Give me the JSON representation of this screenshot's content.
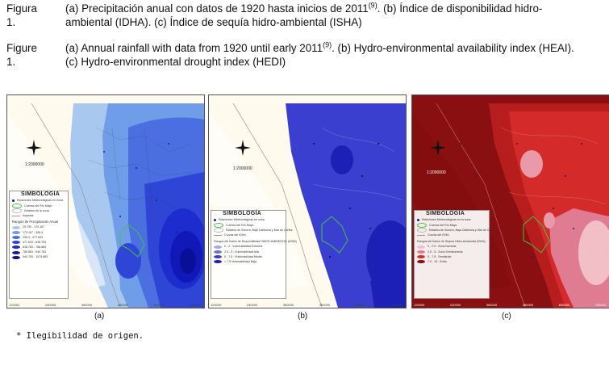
{
  "captions": {
    "spanish": {
      "label": "Figura 1.",
      "text_line1_pre": "(a) Precipitación anual con datos de 1920 hasta inicios de 2011",
      "sup1": "(9)",
      "text_line1_post": ". (b) Índice de disponibilidad hidro-",
      "text_line2": "ambiental (IDHA). (c) Índice de sequía hidro-ambiental (ISHA)"
    },
    "english": {
      "label": "Figure 1.",
      "text_line1_pre": "(a) Annual rainfall with data from 1920 until early 2011",
      "sup1": "(9)",
      "text_line1_post": ". (b) Hydro-environmental availability index (HEAI).",
      "text_line2": "(c) Hydro-environmental drought index (HEDI)"
    }
  },
  "maps": [
    {
      "sublabel": "(a)",
      "scale": "1:2000000",
      "x_ticks": [
        "120000",
        "240000",
        "360000",
        "480000",
        "600000",
        "720000"
      ],
      "legend": {
        "title": "SIMBOLOGIA",
        "items": [
          {
            "label": "Estaciones Meteorológicas en Zona",
            "color": "#1a1a8c"
          },
          {
            "label": "Cuenca del Río Mayo",
            "color": "#44c244"
          },
          {
            "label": "Estados de la zona",
            "color": "#bbbbbb"
          },
          {
            "label": "Isoyetas",
            "color": "#999999"
          }
        ],
        "subtitle": "Rangos de Precipitación Anual",
        "ranges": [
          {
            "label": "29.750 - 170.167",
            "color": "#a9c8ef"
          },
          {
            "label": "170.167 - 308.4",
            "color": "#6f9de8"
          },
          {
            "label": "308.4 - 477.633",
            "color": "#4b6fe0"
          },
          {
            "label": "477.633 - 638.783",
            "color": "#2f45d6"
          },
          {
            "label": "638.783 - 786.883",
            "color": "#1d2ccc"
          },
          {
            "label": "786.883 - 940.783",
            "color": "#1019b8"
          },
          {
            "label": "940.783 - 1079.883",
            "color": "#0a0f9a"
          }
        ]
      }
    },
    {
      "sublabel": "(b)",
      "scale": "1:2000000",
      "x_ticks": [
        "120000",
        "240000",
        "360000",
        "480000",
        "600000",
        "720000"
      ],
      "legend": {
        "title": "SIMBOLOGÍA",
        "items": [
          {
            "label": "Estaciones Meteorológicas en zona",
            "color": "#1a1a8c"
          },
          {
            "label": "Cuenca del Río Mayo",
            "color": "#44c244"
          },
          {
            "label": "Estados de Sonora, Baja California y Mar de Cortez",
            "color": "#bbbbbb"
          },
          {
            "label": "Curvas del IDHA",
            "color": "#999999"
          }
        ],
        "subtitle": "Rangos del Índice de Disponibilidad HIDRO-AMBIENTAL (IDHA)",
        "ranges": [
          {
            "label": "0 - 2 : Vulnerabilidad Extrema",
            "color": "#a6a8ea"
          },
          {
            "label": "2.5 - 5 : Vulnerabilidad Alta",
            "color": "#6d70dc"
          },
          {
            "label": "5 - 7.5 : Vulnerabilidad Media",
            "color": "#3a3fcf"
          },
          {
            "label": "> 7.5 Vulnerabilidad Baja",
            "color": "#1c20b6"
          }
        ]
      }
    },
    {
      "sublabel": "(c)",
      "scale": "1:2000000",
      "x_ticks": [
        "120000",
        "240000",
        "360000",
        "480000",
        "600000",
        "720000"
      ],
      "legend": {
        "title": "SIMBOLOGÍA",
        "items": [
          {
            "label": "Estaciones Meteorológicas en la zona",
            "color": "#1a1a8c"
          },
          {
            "label": "Cuenca del Río Mayo",
            "color": "#44c244"
          },
          {
            "label": "Estados de Sonora, Baja California y Mar de Cortez",
            "color": "#bbbbbb"
          },
          {
            "label": "Curvas del ISHA",
            "color": "#999999"
          }
        ],
        "subtitle": "Rangos del Índice de Sequía Hidro-Ambiental (ISHA)",
        "ranges": [
          {
            "label": "0 - 2.5 : Zona húmeda",
            "color": "#f3bfc6"
          },
          {
            "label": "2.5 - 5 : Zona Semihúmeda",
            "color": "#e07c92"
          },
          {
            "label": "5 - 7.5 : Semiárida",
            "color": "#d42a2a"
          },
          {
            "label": "7.5 - 10 : Árida",
            "color": "#8a0f10"
          }
        ]
      }
    }
  ],
  "footnote": "* Ilegibilidad de origen.",
  "colors": {
    "rainfall_light": "#a9c8ef",
    "rainfall_dark": "#0a0f9a",
    "availability": "#3a3fcf",
    "drought_dark": "#8a0f10",
    "drought_red": "#d42a2a",
    "land": "#fffaee",
    "basin": "#44c244"
  }
}
